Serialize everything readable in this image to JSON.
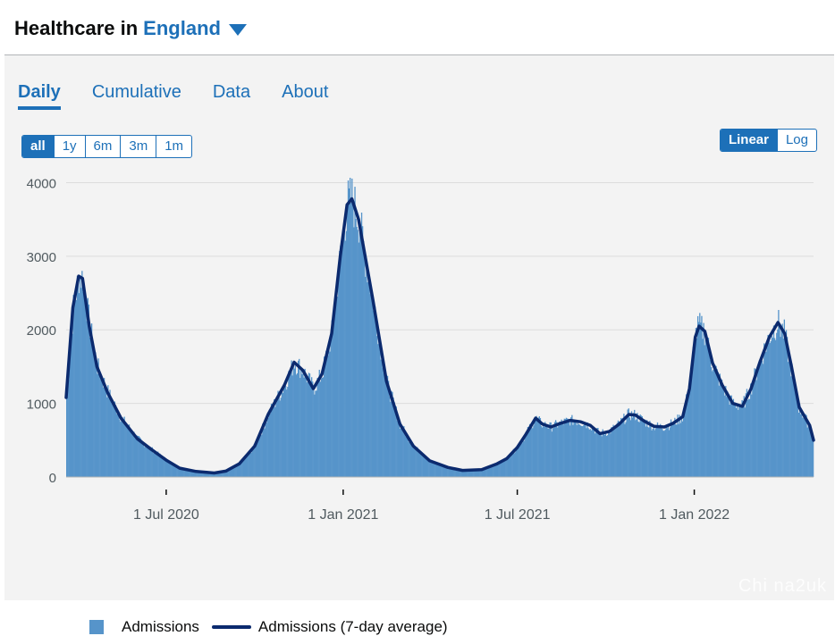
{
  "header": {
    "prefix": "Healthcare in",
    "location": "England"
  },
  "tabs": [
    {
      "label": "Daily",
      "active": true
    },
    {
      "label": "Cumulative",
      "active": false
    },
    {
      "label": "Data",
      "active": false
    },
    {
      "label": "About",
      "active": false
    }
  ],
  "range_buttons": [
    {
      "label": "all",
      "active": true
    },
    {
      "label": "1y",
      "active": false
    },
    {
      "label": "6m",
      "active": false
    },
    {
      "label": "3m",
      "active": false
    },
    {
      "label": "1m",
      "active": false
    }
  ],
  "scale_buttons": [
    {
      "label": "Linear",
      "active": true
    },
    {
      "label": "Log",
      "active": false
    }
  ],
  "legend": {
    "bars": "Admissions",
    "line": "Admissions (7-day average)"
  },
  "watermark": "Chi na2uk",
  "colors": {
    "accent": "#1d70b8",
    "bars": "#5694ca",
    "line": "#0b2a6e"
  },
  "chart_data": {
    "type": "bar",
    "title": "",
    "xlabel": "",
    "ylabel": "",
    "x_start": "2020-03-19",
    "x_end": "2022-05-05",
    "ylim": [
      0,
      4200
    ],
    "yticks": [
      0,
      1000,
      2000,
      3000,
      4000
    ],
    "ytick_labels": [
      "0",
      "1000",
      "2000",
      "3000",
      "4000"
    ],
    "xticks": [
      {
        "date": "2020-07-01",
        "label": "1 Jul 2020"
      },
      {
        "date": "2021-01-01",
        "label": "1 Jan 2021"
      },
      {
        "date": "2021-07-01",
        "label": "1 Jul 2021"
      },
      {
        "date": "2022-01-01",
        "label": "1 Jan 2022"
      }
    ],
    "grid": "horizontal",
    "legend_position": "bottom",
    "series": [
      {
        "name": "Admissions (7-day average)",
        "kind": "line",
        "points": [
          [
            "2020-03-19",
            1080
          ],
          [
            "2020-03-26",
            2300
          ],
          [
            "2020-04-01",
            2730
          ],
          [
            "2020-04-05",
            2700
          ],
          [
            "2020-04-12",
            2050
          ],
          [
            "2020-04-20",
            1500
          ],
          [
            "2020-05-01",
            1150
          ],
          [
            "2020-05-15",
            800
          ],
          [
            "2020-06-01",
            520
          ],
          [
            "2020-06-15",
            380
          ],
          [
            "2020-07-01",
            230
          ],
          [
            "2020-07-15",
            120
          ],
          [
            "2020-08-01",
            75
          ],
          [
            "2020-08-20",
            55
          ],
          [
            "2020-09-01",
            80
          ],
          [
            "2020-09-15",
            180
          ],
          [
            "2020-10-01",
            420
          ],
          [
            "2020-10-15",
            850
          ],
          [
            "2020-11-01",
            1250
          ],
          [
            "2020-11-11",
            1560
          ],
          [
            "2020-11-20",
            1450
          ],
          [
            "2020-12-01",
            1200
          ],
          [
            "2020-12-10",
            1400
          ],
          [
            "2020-12-20",
            1950
          ],
          [
            "2020-12-29",
            3000
          ],
          [
            "2021-01-05",
            3700
          ],
          [
            "2021-01-10",
            3780
          ],
          [
            "2021-01-17",
            3500
          ],
          [
            "2021-02-01",
            2400
          ],
          [
            "2021-02-15",
            1300
          ],
          [
            "2021-03-01",
            720
          ],
          [
            "2021-03-15",
            420
          ],
          [
            "2021-04-01",
            220
          ],
          [
            "2021-04-20",
            130
          ],
          [
            "2021-05-05",
            90
          ],
          [
            "2021-05-25",
            100
          ],
          [
            "2021-06-10",
            180
          ],
          [
            "2021-06-20",
            250
          ],
          [
            "2021-07-01",
            400
          ],
          [
            "2021-07-10",
            580
          ],
          [
            "2021-07-20",
            800
          ],
          [
            "2021-07-27",
            720
          ],
          [
            "2021-08-05",
            680
          ],
          [
            "2021-08-15",
            730
          ],
          [
            "2021-08-25",
            770
          ],
          [
            "2021-09-05",
            750
          ],
          [
            "2021-09-15",
            700
          ],
          [
            "2021-09-25",
            590
          ],
          [
            "2021-10-05",
            620
          ],
          [
            "2021-10-15",
            720
          ],
          [
            "2021-10-25",
            850
          ],
          [
            "2021-11-01",
            840
          ],
          [
            "2021-11-10",
            760
          ],
          [
            "2021-11-20",
            690
          ],
          [
            "2021-12-01",
            680
          ],
          [
            "2021-12-10",
            730
          ],
          [
            "2021-12-20",
            820
          ],
          [
            "2021-12-27",
            1200
          ],
          [
            "2022-01-02",
            1900
          ],
          [
            "2022-01-06",
            2050
          ],
          [
            "2022-01-12",
            1980
          ],
          [
            "2022-01-20",
            1550
          ],
          [
            "2022-01-30",
            1250
          ],
          [
            "2022-02-10",
            1000
          ],
          [
            "2022-02-20",
            960
          ],
          [
            "2022-03-01",
            1200
          ],
          [
            "2022-03-10",
            1550
          ],
          [
            "2022-03-20",
            1900
          ],
          [
            "2022-03-29",
            2100
          ],
          [
            "2022-04-05",
            1950
          ],
          [
            "2022-04-12",
            1500
          ],
          [
            "2022-04-20",
            950
          ],
          [
            "2022-05-01",
            700
          ],
          [
            "2022-05-05",
            500
          ]
        ]
      }
    ]
  }
}
